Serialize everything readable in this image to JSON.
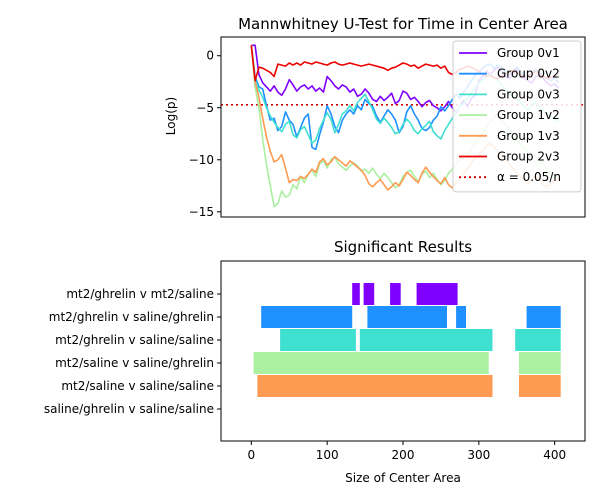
{
  "figure": {
    "top": {
      "type": "line",
      "title": "Mannwhitney U-Test for Time in Center Area",
      "ylabel": "Log(p)",
      "xlim": [
        -40,
        440
      ],
      "ylim": [
        -15.5,
        1.8
      ],
      "yticks": [
        0,
        -5,
        -10,
        -15
      ],
      "threshold": {
        "name": "α = 0.05/n",
        "value": -4.72,
        "color": "#d00000"
      },
      "legend_position": "upper-right"
    },
    "bottom": {
      "type": "bar",
      "title": "Significant Results",
      "xlabel": "Size of Center Area",
      "xlim": [
        -40,
        440
      ],
      "xticks": [
        0,
        100,
        200,
        300,
        400
      ]
    }
  },
  "chart_data": [
    {
      "type": "line",
      "title": "Mannwhitney U-Test for Time in Center Area",
      "ylabel": "Log(p)",
      "ylim": [
        -15.5,
        1.8
      ],
      "legend_position": "upper-right",
      "x": [
        0,
        5,
        10,
        15,
        20,
        25,
        30,
        35,
        40,
        45,
        50,
        55,
        60,
        65,
        70,
        75,
        80,
        85,
        90,
        95,
        100,
        105,
        110,
        115,
        120,
        125,
        130,
        135,
        140,
        145,
        150,
        155,
        160,
        165,
        170,
        175,
        180,
        185,
        190,
        195,
        200,
        205,
        210,
        215,
        220,
        225,
        230,
        235,
        240,
        245,
        250,
        255,
        260,
        265,
        270,
        275,
        280,
        285,
        290,
        295,
        300,
        305,
        310,
        315,
        320,
        325,
        330,
        335,
        340,
        345,
        350,
        355,
        360,
        365,
        370,
        375,
        380,
        385,
        390,
        395,
        400,
        405
      ],
      "series": [
        {
          "name": "Group 0v1",
          "color": "#7f00ff",
          "values": [
            1.0,
            1.0,
            -1.8,
            -2.6,
            -3.0,
            -3.4,
            -2.9,
            -3.5,
            -3.8,
            -3.2,
            -2.3,
            -2.8,
            -3.4,
            -3.0,
            -2.8,
            -3.2,
            -2.9,
            -3.4,
            -3.1,
            -3.5,
            -2.0,
            -2.4,
            -2.9,
            -3.2,
            -2.8,
            -3.0,
            -3.5,
            -3.2,
            -3.9,
            -3.7,
            -3.2,
            -3.6,
            -4.2,
            -4.4,
            -3.9,
            -4.3,
            -4.0,
            -3.6,
            -4.6,
            -4.3,
            -3.4,
            -3.6,
            -4.2,
            -4.0,
            -4.4,
            -4.9,
            -4.5,
            -4.3,
            -4.8,
            -5.0,
            -5.3,
            -4.9,
            -4.4,
            -5.0,
            -5.5,
            -4.8,
            -4.3,
            -4.9,
            -4.1,
            -3.8,
            -2.4,
            -2.0,
            -1.5,
            -1.8,
            -1.4,
            -1.1,
            -1.5,
            -2.0,
            -2.2,
            -1.7,
            -1.3,
            -2.0,
            -2.2,
            -2.4,
            -2.6,
            -2.0,
            -1.8,
            -2.2,
            -2.6,
            -2.9,
            -2.7,
            -3.1
          ]
        },
        {
          "name": "Group 0v2",
          "color": "#1e90ff",
          "values": [
            1.0,
            -2.0,
            -3.0,
            -3.2,
            -4.8,
            -6.2,
            -6.0,
            -7.2,
            -6.8,
            -5.4,
            -6.2,
            -6.6,
            -7.8,
            -6.9,
            -6.0,
            -5.6,
            -8.8,
            -9.0,
            -7.6,
            -6.4,
            -4.8,
            -5.6,
            -6.8,
            -7.4,
            -6.2,
            -5.6,
            -5.2,
            -5.6,
            -4.8,
            -5.2,
            -4.2,
            -4.6,
            -4.9,
            -5.8,
            -6.4,
            -5.8,
            -5.2,
            -5.6,
            -6.2,
            -7.4,
            -6.8,
            -5.4,
            -4.8,
            -5.6,
            -6.2,
            -7.0,
            -7.2,
            -6.9,
            -6.2,
            -5.8,
            -4.9,
            -5.3,
            -4.8,
            -4.2,
            -3.7,
            -4.1,
            -3.5,
            -3.0,
            -2.4,
            -1.9,
            -1.6,
            -1.2,
            -0.9,
            -0.8,
            -1.2,
            -0.9,
            -1.1,
            -1.6,
            -1.8,
            -1.4,
            -1.1,
            -1.5,
            -1.8,
            -2.0,
            -1.6,
            -1.3,
            -1.6,
            -2.0,
            -2.2,
            -2.4,
            -2.1,
            -2.6
          ]
        },
        {
          "name": "Group 0v3",
          "color": "#40e0d0",
          "values": [
            1.0,
            -2.3,
            -3.3,
            -4.0,
            -5.0,
            -5.8,
            -6.4,
            -6.9,
            -7.3,
            -6.6,
            -6.3,
            -7.6,
            -7.9,
            -7.1,
            -6.8,
            -7.6,
            -8.4,
            -8.1,
            -7.0,
            -6.2,
            -5.5,
            -6.1,
            -7.4,
            -6.6,
            -5.6,
            -5.3,
            -4.8,
            -5.3,
            -4.5,
            -4.1,
            -3.7,
            -4.4,
            -5.2,
            -6.1,
            -6.5,
            -6.0,
            -6.4,
            -6.9,
            -7.5,
            -7.3,
            -6.6,
            -6.1,
            -6.5,
            -7.2,
            -7.5,
            -7.0,
            -6.7,
            -6.3,
            -7.3,
            -7.7,
            -8.0,
            -7.2,
            -6.6,
            -6.0,
            -5.4,
            -4.8,
            -4.6,
            -4.1,
            -3.6,
            -3.1,
            -2.6,
            -2.3,
            -2.0,
            -1.8,
            -2.1,
            -2.4,
            -2.8,
            -3.2,
            -3.5,
            -3.9,
            -4.2,
            -4.5,
            -4.9,
            -5.2,
            -4.8,
            -4.5,
            -4.9,
            -5.3,
            -5.5,
            -5.9,
            -6.1,
            -6.3
          ]
        },
        {
          "name": "Group 1v2",
          "color": "#aaf0a0",
          "values": [
            1.0,
            -3.0,
            -5.0,
            -8.0,
            -10.5,
            -12.5,
            -14.5,
            -14.2,
            -13.0,
            -13.6,
            -13.4,
            -12.4,
            -12.8,
            -11.6,
            -12.2,
            -11.4,
            -11.0,
            -11.6,
            -10.4,
            -10.1,
            -10.8,
            -10.0,
            -9.7,
            -10.4,
            -10.7,
            -11.0,
            -10.6,
            -10.3,
            -10.6,
            -11.1,
            -10.9,
            -11.3,
            -10.8,
            -11.4,
            -11.8,
            -11.3,
            -11.7,
            -12.2,
            -12.7,
            -12.4,
            -11.6,
            -11.2,
            -11.0,
            -11.6,
            -12.1,
            -11.4,
            -11.1,
            -11.7,
            -11.3,
            -11.9,
            -12.4,
            -12.0,
            -11.3,
            -10.9,
            -10.4,
            -10.0,
            -9.6,
            -9.8,
            -8.9,
            -8.4,
            -7.9,
            -7.4,
            -6.9,
            -6.4,
            -5.9,
            -5.6,
            -6.1,
            -6.6,
            -7.1,
            -7.6,
            -8.1,
            -8.5,
            -8.9,
            -9.4,
            -9.9,
            -10.3,
            -9.9,
            -10.4,
            -10.9,
            -11.3,
            -11.8,
            -11.4
          ]
        },
        {
          "name": "Group 1v3",
          "color": "#ff9a52",
          "values": [
            1.0,
            -2.5,
            -4.0,
            -6.0,
            -7.8,
            -9.2,
            -10.2,
            -10.0,
            -9.5,
            -10.8,
            -12.2,
            -11.9,
            -12.0,
            -11.6,
            -11.8,
            -11.4,
            -10.9,
            -11.2,
            -10.2,
            -9.9,
            -10.5,
            -10.2,
            -9.7,
            -10.0,
            -10.3,
            -10.6,
            -10.1,
            -10.4,
            -10.7,
            -11.0,
            -11.5,
            -12.3,
            -12.6,
            -12.2,
            -11.9,
            -12.4,
            -12.9,
            -12.6,
            -12.2,
            -12.5,
            -11.9,
            -11.2,
            -11.5,
            -11.9,
            -12.2,
            -11.3,
            -10.7,
            -11.2,
            -11.6,
            -12.0,
            -12.3,
            -11.7,
            -12.4,
            -12.7,
            -12.2,
            -11.8,
            -11.3,
            -10.8,
            -10.3,
            -9.9,
            -9.5,
            -9.1,
            -8.7,
            -8.4,
            -8.8,
            -9.2,
            -9.6,
            -10.0,
            -10.4,
            -10.8,
            -11.2,
            -11.6,
            -12.0,
            -12.3,
            -11.9,
            -11.6,
            -12.0,
            -12.4,
            -12.6,
            -12.3,
            -12.0,
            -11.8
          ]
        },
        {
          "name": "Group 2v3",
          "color": "#ee0000",
          "values": [
            1.0,
            -2.4,
            -1.1,
            -1.2,
            -1.4,
            -1.6,
            -2.0,
            -0.8,
            -0.9,
            -1.0,
            -0.7,
            -0.9,
            -0.7,
            -0.9,
            -0.6,
            -0.7,
            -0.8,
            -0.6,
            -0.7,
            -0.8,
            -0.9,
            -0.7,
            -0.6,
            -0.8,
            -0.9,
            -0.8,
            -0.7,
            -0.8,
            -0.9,
            -1.0,
            -0.9,
            -0.8,
            -0.9,
            -1.0,
            -1.1,
            -1.2,
            -1.4,
            -1.2,
            -1.1,
            -0.9,
            -0.7,
            -0.8,
            -1.0,
            -0.9,
            -1.2,
            -1.0,
            -0.8,
            -0.9,
            -1.0,
            -0.9,
            -1.2,
            -1.0,
            -1.6,
            -1.8,
            -1.6,
            -1.3,
            -1.2,
            -1.0,
            -1.1,
            -1.3,
            -1.5,
            -1.8,
            -2.0,
            -1.9,
            -2.1,
            -2.2,
            -2.0,
            -1.8,
            -1.6,
            -1.4,
            -1.6,
            -1.8,
            -2.0,
            -1.9,
            -1.7,
            -1.5,
            -1.8,
            -2.0,
            -2.2,
            -2.1,
            -1.9,
            -1.8
          ]
        }
      ]
    },
    {
      "type": "bar",
      "title": "Significant Results",
      "xlabel": "Size of Center Area",
      "xlim": [
        -40,
        440
      ],
      "categories": [
        "mt2/ghrelin v mt2/saline",
        "mt2/ghrelin v saline/ghrelin",
        "mt2/ghrelin v saline/saline",
        "mt2/saline v saline/ghrelin",
        "mt2/saline v saline/saline",
        "saline/ghrelin v saline/saline"
      ],
      "colors": [
        "#7f00ff",
        "#1e90ff",
        "#40e0d0",
        "#aaf0a0",
        "#ff9a52",
        "#ee0000"
      ],
      "intervals": [
        [
          [
            133,
            143
          ],
          [
            148,
            162
          ],
          [
            183,
            197
          ],
          [
            218,
            272
          ]
        ],
        [
          [
            13,
            133
          ],
          [
            153,
            258
          ],
          [
            270,
            283
          ],
          [
            363,
            408
          ]
        ],
        [
          [
            38,
            138
          ],
          [
            143,
            318
          ],
          [
            348,
            408
          ]
        ],
        [
          [
            3,
            313
          ],
          [
            353,
            408
          ]
        ],
        [
          [
            8,
            318
          ],
          [
            353,
            408
          ]
        ],
        []
      ]
    }
  ]
}
